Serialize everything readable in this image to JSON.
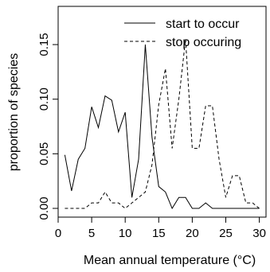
{
  "chart_data": {
    "type": "line",
    "xlabel": "Mean annual temperature (°C)",
    "ylabel": "proportion of species",
    "xlim": [
      0,
      31
    ],
    "ylim": [
      -0.008,
      0.185
    ],
    "grid": false,
    "legend_position": "top-right",
    "xticks": [
      0,
      5,
      10,
      15,
      20,
      25,
      30
    ],
    "xtick_labels": [
      "0",
      "5",
      "10",
      "15",
      "20",
      "25",
      "30"
    ],
    "yticks": [
      0.0,
      0.05,
      0.1,
      0.15
    ],
    "ytick_labels": [
      "0.00",
      "0.05",
      "0.10",
      "0.15"
    ],
    "series": [
      {
        "name": "start to occur",
        "style": "solid",
        "color": "#000000",
        "x": [
          1,
          2,
          3,
          4,
          5,
          6,
          7,
          8,
          9,
          10,
          11,
          12,
          13,
          14,
          15,
          16,
          17,
          18,
          19,
          20,
          21,
          22,
          23,
          24,
          25,
          26,
          27,
          28,
          29,
          30
        ],
        "y": [
          0.049,
          0.016,
          0.045,
          0.055,
          0.093,
          0.074,
          0.103,
          0.099,
          0.07,
          0.088,
          0.01,
          0.045,
          0.15,
          0.065,
          0.02,
          0.015,
          0.0,
          0.01,
          0.01,
          0.0,
          0.0,
          0.005,
          0.0,
          0.0,
          0.0,
          0.0,
          0.0,
          0.0,
          0.0,
          0.0
        ]
      },
      {
        "name": "stop occuring",
        "style": "dashed",
        "color": "#000000",
        "x": [
          1,
          2,
          3,
          4,
          5,
          6,
          7,
          8,
          9,
          10,
          11,
          12,
          13,
          14,
          15,
          16,
          17,
          18,
          19,
          20,
          21,
          22,
          23,
          24,
          25,
          26,
          27,
          28,
          29,
          30
        ],
        "y": [
          0.0,
          0.0,
          0.0,
          0.0,
          0.005,
          0.005,
          0.015,
          0.005,
          0.005,
          0.0,
          0.005,
          0.01,
          0.015,
          0.04,
          0.095,
          0.128,
          0.055,
          0.1,
          0.155,
          0.055,
          0.055,
          0.094,
          0.094,
          0.045,
          0.01,
          0.03,
          0.03,
          0.005,
          0.005,
          0.0
        ]
      }
    ]
  }
}
